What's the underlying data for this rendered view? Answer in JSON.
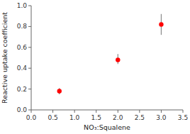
{
  "chart_data": {
    "type": "scatter",
    "xlabel": "NO₃:Squalene",
    "ylabel": "Reactive uptake coefficient",
    "x": [
      0.65,
      2.0,
      3.0
    ],
    "values": [
      0.18,
      0.48,
      0.82
    ],
    "yerr_low": [
      0.03,
      0.04,
      0.1
    ],
    "yerr_high": [
      0.03,
      0.055,
      0.1
    ],
    "color": "#ff0000",
    "xlim": [
      0,
      3.5
    ],
    "ylim": [
      0,
      1.0
    ],
    "xticks": [
      {
        "value": 0,
        "label": "0.0"
      },
      0.5,
      {
        "value": 1.0,
        "label": "1.0"
      },
      1.5,
      {
        "value": 2.0,
        "label": "2.0"
      },
      2.5,
      {
        "value": 3.0,
        "label": "3.0"
      },
      3.5
    ],
    "yticks": [
      {
        "value": 0,
        "label": "0.0"
      },
      0.2,
      0.4,
      0.6,
      0.8,
      {
        "value": 1.0,
        "label": "1.0"
      }
    ]
  }
}
